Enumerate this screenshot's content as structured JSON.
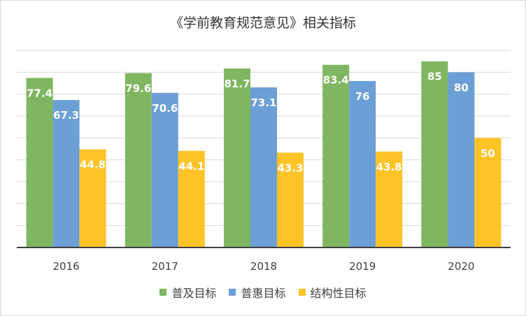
{
  "chart_data": {
    "type": "bar",
    "title": "《学前教育规范意见》相关指标",
    "categories": [
      "2016",
      "2017",
      "2018",
      "2019",
      "2020"
    ],
    "series": [
      {
        "name": "普及目标",
        "values": [
          77.4,
          79.6,
          81.7,
          83.4,
          85
        ],
        "color": "#7fb661"
      },
      {
        "name": "普惠目标",
        "values": [
          67.3,
          70.6,
          73.1,
          76,
          80
        ],
        "color": "#6c9fd6"
      },
      {
        "name": "结构性目标",
        "values": [
          44.8,
          44.1,
          43.3,
          43.8,
          50
        ],
        "color": "#fec427"
      }
    ],
    "ylim": [
      0,
      90
    ],
    "grid": true,
    "y_axis_labels_shown": false,
    "data_labels": true,
    "data_label_color": "#ffffff",
    "legend_position": "bottom",
    "xlabel": "",
    "ylabel": ""
  }
}
